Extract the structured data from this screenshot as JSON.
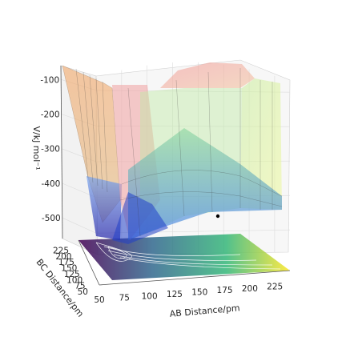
{
  "chart_data": {
    "type": "surface",
    "projection": "3d",
    "colormap": "Spectral_r (surface, alpha ~0.45)",
    "floor_colormap": "viridis (contour projection)",
    "zlabel": "V/kJ mol⁻¹",
    "xlabel": "AB Distance/pm",
    "ylabel": "BC Distance/pm",
    "xticks": [
      50,
      75,
      100,
      125,
      150,
      175,
      200,
      225
    ],
    "yticks": [
      50,
      75,
      100,
      125,
      150,
      175,
      200,
      225
    ],
    "zticks": [
      -100,
      -200,
      -300,
      -400,
      -500
    ],
    "xlim": [
      50,
      240
    ],
    "ylim": [
      50,
      240
    ],
    "zlim": [
      -560,
      -60
    ],
    "grid": true,
    "marker": {
      "x": 175,
      "y": 190,
      "z": -465,
      "label": ""
    },
    "surface_samples": [
      {
        "x": 50,
        "y": 50,
        "z": -110
      },
      {
        "x": 75,
        "y": 75,
        "z": -510
      },
      {
        "x": 100,
        "y": 225,
        "z": -220
      },
      {
        "x": 225,
        "y": 75,
        "z": -250
      },
      {
        "x": 175,
        "y": 175,
        "z": -440
      },
      {
        "x": 225,
        "y": 225,
        "z": -430
      }
    ]
  }
}
